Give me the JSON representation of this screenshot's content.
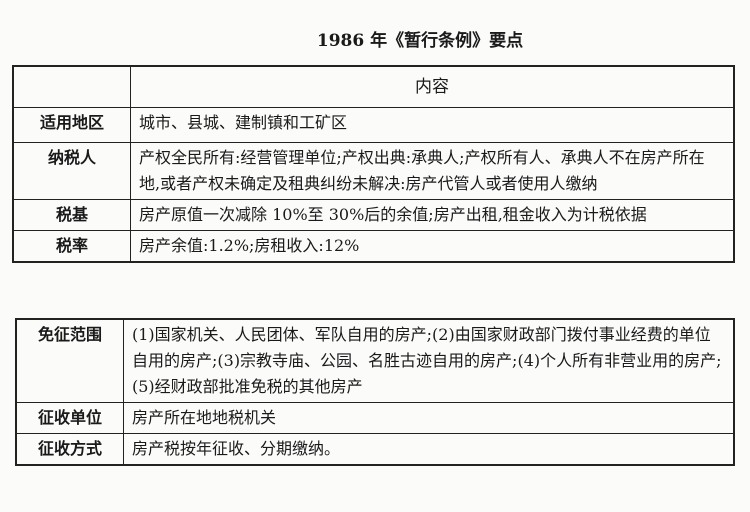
{
  "title": "1986 年《暂行条例》要点",
  "header": {
    "col1": "",
    "col2": "内容"
  },
  "rows": [
    {
      "label": "适用地区",
      "content": "城市、县城、建制镇和工矿区"
    },
    {
      "label": "纳税人",
      "content": "产权全民所有:经营管理单位;产权出典:承典人;产权所有人、承典人不在房产所在地,或者产权未确定及租典纠纷未解决:房产代管人或者使用人缴纳"
    },
    {
      "label": "税基",
      "content": "房产原值一次减除 10%至 30%后的余值;房产出租,租金收入为计税依据"
    },
    {
      "label": "税率",
      "content": "房产余值:1.2%;房租收入:12%"
    },
    {
      "label": "免征范围",
      "content": "(1)国家机关、人民团体、军队自用的房产;(2)由国家财政部门拨付事业经费的单位自用的房产;(3)宗教寺庙、公园、名胜古迹自用的房产;(4)个人所有非营业用的房产;(5)经财政部批准免税的其他房产"
    },
    {
      "label": "征收单位",
      "content": "房产所在地地税机关"
    },
    {
      "label": "征收方式",
      "content": "房产税按年征收、分期缴纳。"
    }
  ]
}
